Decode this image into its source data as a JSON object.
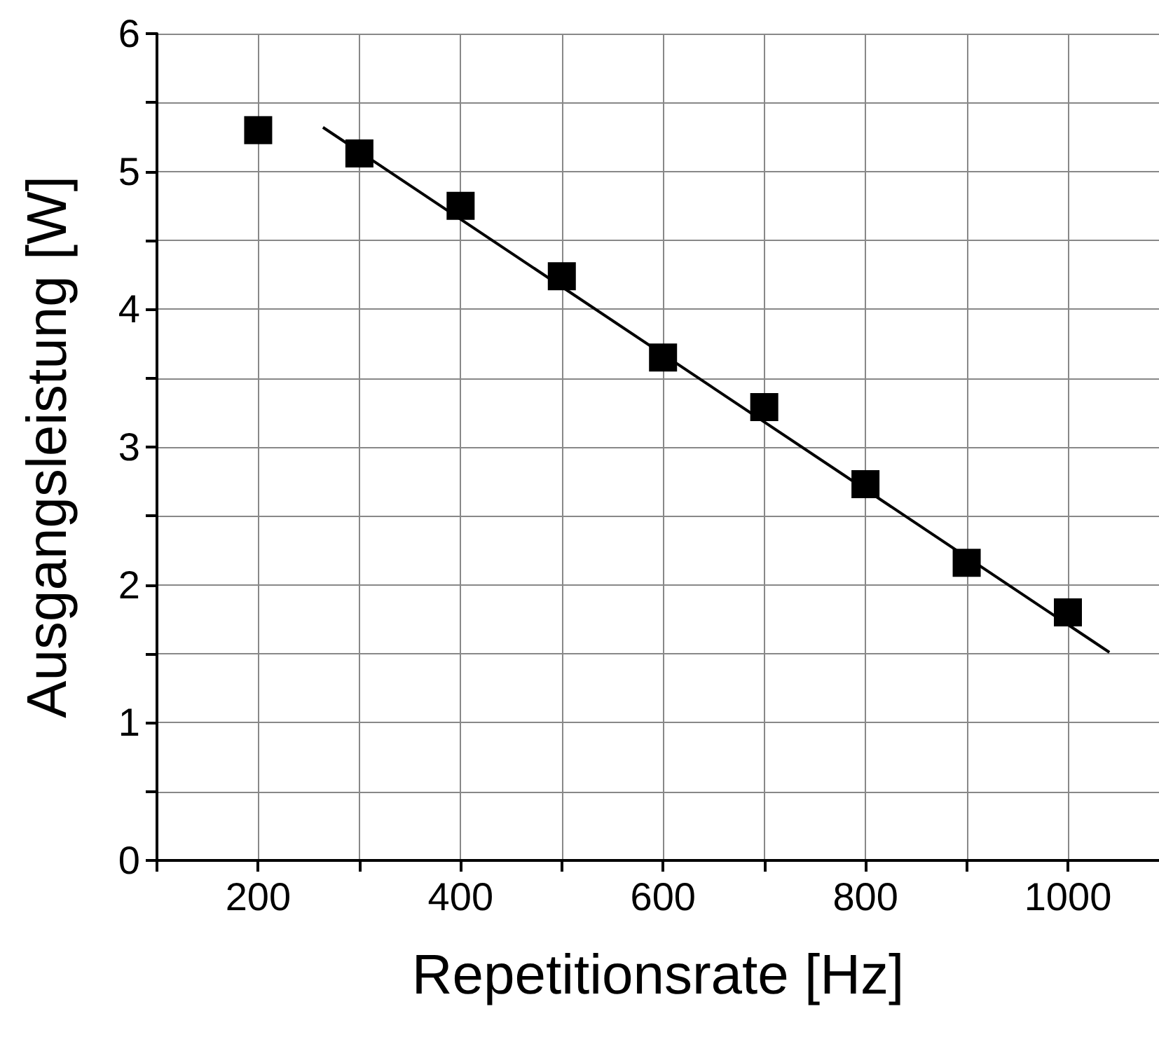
{
  "chart_data": {
    "type": "scatter",
    "xlabel": "Repetitionsrate [Hz]",
    "ylabel": "Ausgangsleistung [W]",
    "xlim": [
      100,
      1090
    ],
    "xticks": [
      {
        "value": 100,
        "label": null
      },
      200,
      {
        "value": 300,
        "label": null
      },
      400,
      {
        "value": 500,
        "label": null
      },
      600,
      {
        "value": 700,
        "label": null
      },
      800,
      {
        "value": 900,
        "label": null
      },
      1000
    ],
    "ylim": [
      0,
      6
    ],
    "yticks": [
      0,
      {
        "value": 0.5,
        "label": null
      },
      1,
      {
        "value": 1.5,
        "label": null
      },
      2,
      {
        "value": 2.5,
        "label": null
      },
      3,
      {
        "value": 3.5,
        "label": null
      },
      4,
      {
        "value": 4.5,
        "label": null
      },
      5,
      {
        "value": 5.5,
        "label": null
      },
      6
    ],
    "grid": true,
    "series": [
      {
        "color": "#000000",
        "marker": "square",
        "x": [
          200,
          300,
          400,
          500,
          600,
          700,
          800,
          900,
          1000
        ],
        "values": [
          5.3,
          5.13,
          4.75,
          4.24,
          3.65,
          3.29,
          2.73,
          2.16,
          1.8
        ]
      },
      {
        "type": "line",
        "color": "#000000",
        "marker": "none",
        "line_style": "solid",
        "x": [
          264,
          1041
        ],
        "values": [
          5.32,
          1.51
        ]
      }
    ]
  }
}
